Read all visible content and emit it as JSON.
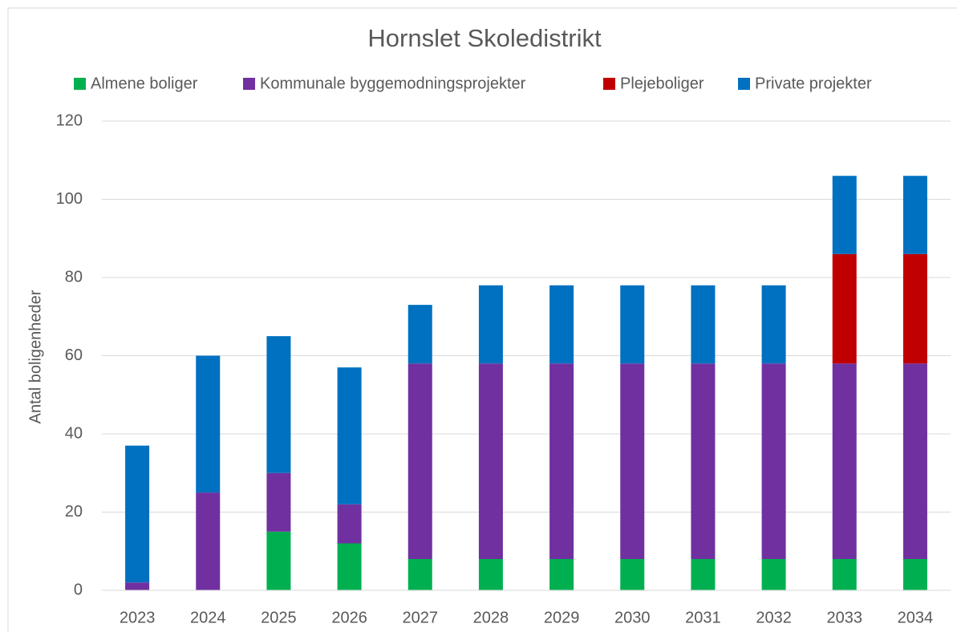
{
  "chart_data": {
    "type": "stacked_bar",
    "title": "Hornslet Skoledistrikt",
    "y_axis_label": "Antal boligenheder",
    "categories": [
      "2023",
      "2024",
      "2025",
      "2026",
      "2027",
      "2028",
      "2029",
      "2030",
      "2031",
      "2032",
      "2033",
      "2034"
    ],
    "series": [
      {
        "name": "Almene boliger",
        "color": "#00b050",
        "values": [
          0,
          0,
          15,
          12,
          8,
          8,
          8,
          8,
          8,
          8,
          8,
          8
        ]
      },
      {
        "name": "Kommunale byggemodningsprojekter",
        "color": "#7030a0",
        "values": [
          2,
          25,
          15,
          10,
          50,
          50,
          50,
          50,
          50,
          50,
          50,
          50
        ]
      },
      {
        "name": "Plejeboliger",
        "color": "#c00000",
        "values": [
          0,
          0,
          0,
          0,
          0,
          0,
          0,
          0,
          0,
          0,
          28,
          28
        ]
      },
      {
        "name": "Private projekter",
        "color": "#0070c0",
        "values": [
          35,
          35,
          35,
          35,
          15,
          20,
          20,
          20,
          20,
          20,
          20,
          20
        ]
      }
    ],
    "ylim": [
      0,
      120
    ],
    "yticks": [
      0,
      20,
      40,
      60,
      80,
      100,
      120
    ],
    "grid": true,
    "legend": "top"
  }
}
